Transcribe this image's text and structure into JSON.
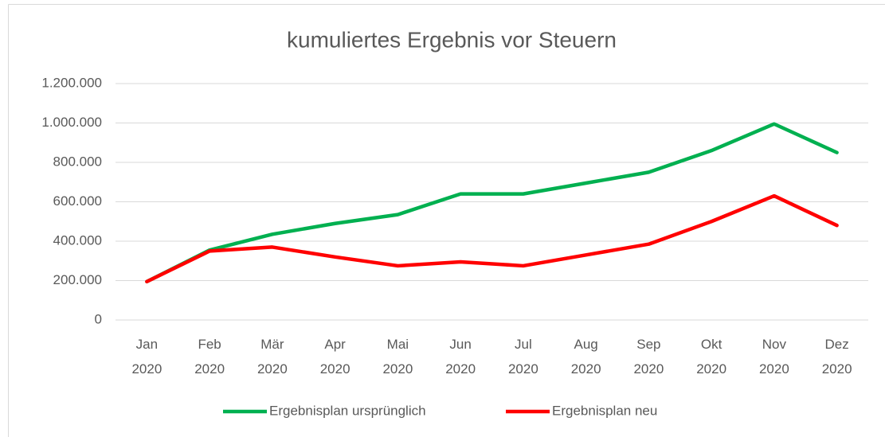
{
  "chart_data": {
    "type": "line",
    "title": "kumuliertes Ergebnis vor Steuern",
    "categories": [
      "Jan 2020",
      "Feb 2020",
      "Mär 2020",
      "Apr 2020",
      "Mai 2020",
      "Jun 2020",
      "Jul 2020",
      "Aug 2020",
      "Sep 2020",
      "Okt 2020",
      "Nov 2020",
      "Dez 2020"
    ],
    "series": [
      {
        "name": "Ergebnisplan ursprünglich",
        "color": "#00b050",
        "values": [
          195000,
          355000,
          435000,
          490000,
          535000,
          640000,
          640000,
          695000,
          750000,
          860000,
          995000,
          850000
        ]
      },
      {
        "name": "Ergebnisplan neu",
        "color": "#ff0000",
        "values": [
          195000,
          350000,
          370000,
          320000,
          275000,
          295000,
          275000,
          330000,
          385000,
          500000,
          630000,
          480000
        ]
      }
    ],
    "ylim": [
      0,
      1200000
    ],
    "yticks": [
      0,
      {
        "value": 200000,
        "label": "200.000"
      },
      {
        "value": 400000,
        "label": "400.000"
      },
      {
        "value": 600000,
        "label": "600.000"
      },
      {
        "value": 800000,
        "label": "800.000"
      },
      {
        "value": 1000000,
        "label": "1.000.000"
      },
      {
        "value": 1200000,
        "label": "1.200.000"
      }
    ],
    "grid": true,
    "legend": "bottom"
  }
}
